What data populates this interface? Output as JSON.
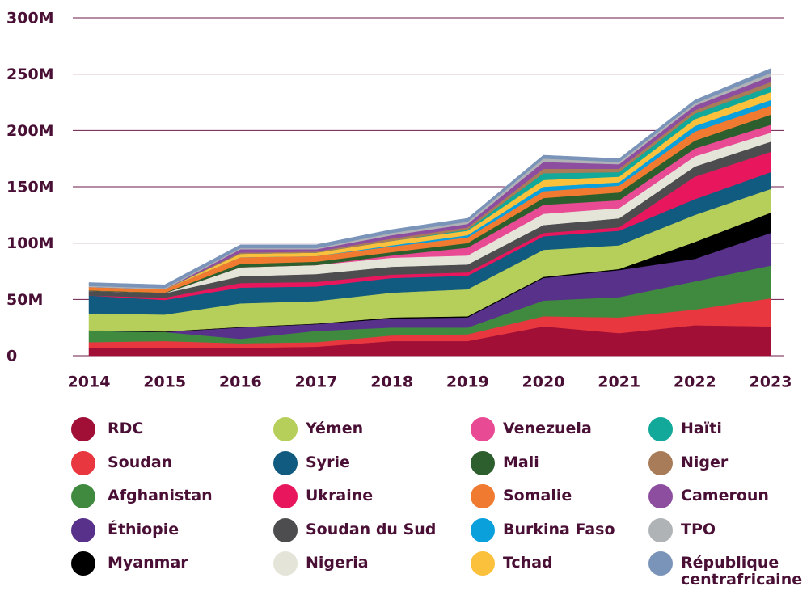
{
  "chart_data": {
    "type": "stacked_area",
    "categories": [
      "2014",
      "2015",
      "2016",
      "2017",
      "2018",
      "2019",
      "2020",
      "2021",
      "2022",
      "2023"
    ],
    "ylim": [
      0,
      300000000
    ],
    "yticks": [
      {
        "value": 0,
        "label": "0"
      },
      {
        "value": 50000000,
        "label": "50M"
      },
      {
        "value": 100000000,
        "label": "100M"
      },
      {
        "value": 150000000,
        "label": "150M"
      },
      {
        "value": 200000000,
        "label": "200M"
      },
      {
        "value": 250000000,
        "label": "250M"
      },
      {
        "value": 300000000,
        "label": "300M"
      }
    ],
    "grid": true,
    "series": [
      {
        "name": "RDC",
        "color": "#a10f36",
        "values": [
          7000000,
          7000000,
          7000000,
          8000000,
          13000000,
          13000000,
          26000000,
          20000000,
          27000000,
          26000000
        ]
      },
      {
        "name": "Soudan",
        "color": "#e8373f",
        "values": [
          5000000,
          6000000,
          4000000,
          4000000,
          5000000,
          6000000,
          9000000,
          14000000,
          14000000,
          25000000
        ]
      },
      {
        "name": "Afghanistan",
        "color": "#3f8a3f",
        "values": [
          10000000,
          8000000,
          4000000,
          10000000,
          7000000,
          6000000,
          14000000,
          18000000,
          25000000,
          29000000
        ]
      },
      {
        "name": "Éthiopie",
        "color": "#57318a",
        "values": [
          0,
          0,
          10000000,
          6000000,
          8000000,
          9000000,
          20000000,
          24000000,
          20000000,
          29000000
        ]
      },
      {
        "name": "Myanmar",
        "color": "#000000",
        "values": [
          500000,
          500000,
          500000,
          500000,
          1000000,
          1000000,
          1000000,
          1000000,
          15000000,
          18000000
        ]
      },
      {
        "name": "Yémen",
        "color": "#b6cf5a",
        "values": [
          15000000,
          15000000,
          21000000,
          20000000,
          22000000,
          24000000,
          24000000,
          21000000,
          24000000,
          21000000
        ]
      },
      {
        "name": "Syrie",
        "color": "#125b80",
        "values": [
          16000000,
          13000000,
          14000000,
          13000000,
          13000000,
          12000000,
          12000000,
          13000000,
          14000000,
          15000000
        ]
      },
      {
        "name": "Ukraine",
        "color": "#e8175d",
        "values": [
          0,
          2000000,
          4000000,
          4000000,
          3000000,
          3000000,
          3000000,
          3000000,
          20000000,
          18000000
        ]
      },
      {
        "name": "Soudan du Sud",
        "color": "#4d4d4f",
        "values": [
          4000000,
          4000000,
          6000000,
          7000000,
          7000000,
          7000000,
          7000000,
          8000000,
          9000000,
          9000000
        ]
      },
      {
        "name": "Nigeria",
        "color": "#e4e4d8",
        "values": [
          0,
          0,
          8000000,
          8000000,
          8000000,
          8000000,
          10000000,
          9000000,
          9000000,
          8000000
        ]
      },
      {
        "name": "Venezuela",
        "color": "#e84a94",
        "values": [
          0,
          0,
          0,
          0,
          2000000,
          7000000,
          8000000,
          7000000,
          7000000,
          7000000
        ]
      },
      {
        "name": "Mali",
        "color": "#2d5f2e",
        "values": [
          500000,
          500000,
          3000000,
          3000000,
          3000000,
          4000000,
          6000000,
          7000000,
          7000000,
          9000000
        ]
      },
      {
        "name": "Somalie",
        "color": "#f07b30",
        "values": [
          3000000,
          3000000,
          6000000,
          5000000,
          5000000,
          5000000,
          6000000,
          6000000,
          8000000,
          8000000
        ]
      },
      {
        "name": "Burkina Faso",
        "color": "#0aa0dc",
        "values": [
          0,
          0,
          0,
          0,
          1000000,
          2000000,
          4000000,
          3000000,
          5000000,
          5000000
        ]
      },
      {
        "name": "Tchad",
        "color": "#fbc03c",
        "values": [
          0,
          0,
          3000000,
          3000000,
          4000000,
          4000000,
          6000000,
          5000000,
          6000000,
          7000000
        ]
      },
      {
        "name": "Haïti",
        "color": "#12a89a",
        "values": [
          0,
          0,
          0,
          0,
          0,
          1000000,
          6000000,
          4000000,
          5000000,
          5000000
        ]
      },
      {
        "name": "Niger",
        "color": "#a87c58",
        "values": [
          0,
          0,
          1000000,
          1000000,
          2000000,
          2000000,
          4000000,
          3000000,
          3000000,
          4000000
        ]
      },
      {
        "name": "Cameroun",
        "color": "#8e4ea0",
        "values": [
          0,
          0,
          3000000,
          2000000,
          3000000,
          3000000,
          6000000,
          4000000,
          4000000,
          5000000
        ]
      },
      {
        "name": "TPO",
        "color": "#b0b3b6",
        "values": [
          1000000,
          1000000,
          1000000,
          1000000,
          2000000,
          2000000,
          3000000,
          2000000,
          2000000,
          3000000
        ]
      },
      {
        "name": "République centrafricaine",
        "color": "#7a93b8",
        "values": [
          3000000,
          3000000,
          3000000,
          3000000,
          3000000,
          3000000,
          3000000,
          3000000,
          3000000,
          4000000
        ]
      }
    ]
  }
}
